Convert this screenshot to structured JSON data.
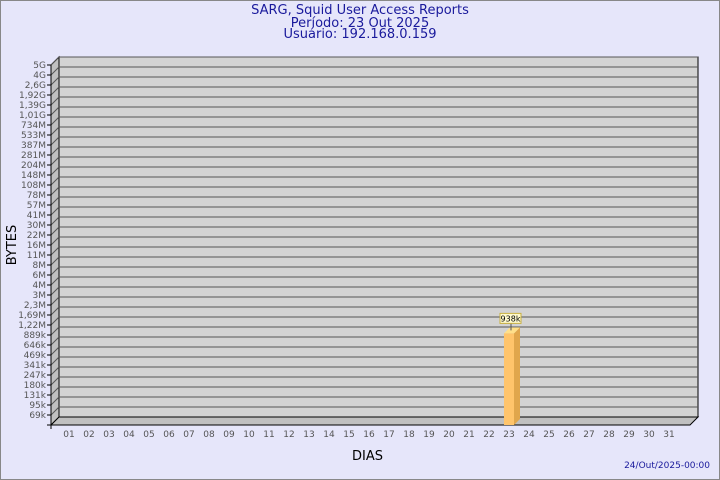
{
  "title_lines": [
    "SARG, Squid User Access Reports",
    "Período: 23 Out 2025",
    "Usuário: 192.168.0.159"
  ],
  "footer": "24/Out/2025-00:00",
  "colors": {
    "background": "#e6e6fa",
    "plot": "#d3d3d3",
    "bar": "#ffc46b",
    "bar_side": "#e0a64c",
    "title": "#1a1a9c"
  },
  "chart_data": {
    "type": "bar",
    "xlabel": "DIAS",
    "ylabel": "BYTES",
    "y_scale": "log",
    "y_tick_labels": [
      "5G",
      "4G",
      "2,6G",
      "1,92G",
      "1,39G",
      "1,01G",
      "734M",
      "533M",
      "387M",
      "281M",
      "204M",
      "148M",
      "108M",
      "78M",
      "57M",
      "41M",
      "30M",
      "22M",
      "16M",
      "11M",
      "8M",
      "6M",
      "4M",
      "3M",
      "2,3M",
      "1,69M",
      "1,22M",
      "889k",
      "646k",
      "469k",
      "341k",
      "247k",
      "180k",
      "131k",
      "95k",
      "69k"
    ],
    "categories": [
      "01",
      "02",
      "03",
      "04",
      "05",
      "06",
      "07",
      "08",
      "09",
      "10",
      "11",
      "12",
      "13",
      "14",
      "15",
      "16",
      "17",
      "18",
      "19",
      "20",
      "21",
      "22",
      "23",
      "24",
      "25",
      "26",
      "27",
      "28",
      "29",
      "30",
      "31"
    ],
    "bars": [
      {
        "category": "23",
        "value": 938000,
        "label": "938k"
      }
    ],
    "grid": true
  }
}
